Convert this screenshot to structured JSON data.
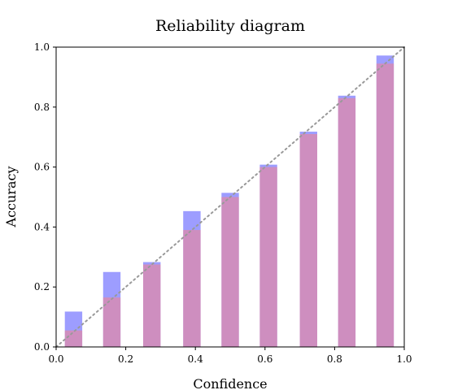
{
  "chart_data": {
    "type": "bar",
    "title": "Reliability diagram",
    "xlabel": "Confidence",
    "ylabel": "Accuracy",
    "xlim": [
      0.0,
      1.0
    ],
    "ylim": [
      0.0,
      1.0
    ],
    "grid": false,
    "legend": "none",
    "bin_centers": [
      0.05,
      0.16,
      0.275,
      0.39,
      0.5,
      0.61,
      0.725,
      0.835,
      0.945
    ],
    "bar_width": 0.05,
    "series": [
      {
        "values": [
          0.118,
          0.25,
          0.283,
          0.453,
          0.514,
          0.608,
          0.718,
          0.838,
          0.972
        ],
        "color": "#8c8cff",
        "opacity": 0.85
      },
      {
        "values": [
          0.055,
          0.165,
          0.275,
          0.39,
          0.5,
          0.6,
          0.71,
          0.83,
          0.945
        ],
        "color": "#ff8080",
        "opacity": 0.5
      }
    ],
    "reference_line": {
      "from": [
        0.0,
        0.0
      ],
      "to": [
        1.0,
        1.0
      ],
      "color": "#999999",
      "style": "dotted"
    },
    "x_ticks": [
      "0.0",
      "0.2",
      "0.4",
      "0.6",
      "0.8",
      "1.0"
    ],
    "y_ticks": [
      "0.0",
      "0.2",
      "0.4",
      "0.6",
      "0.8",
      "1.0"
    ]
  }
}
